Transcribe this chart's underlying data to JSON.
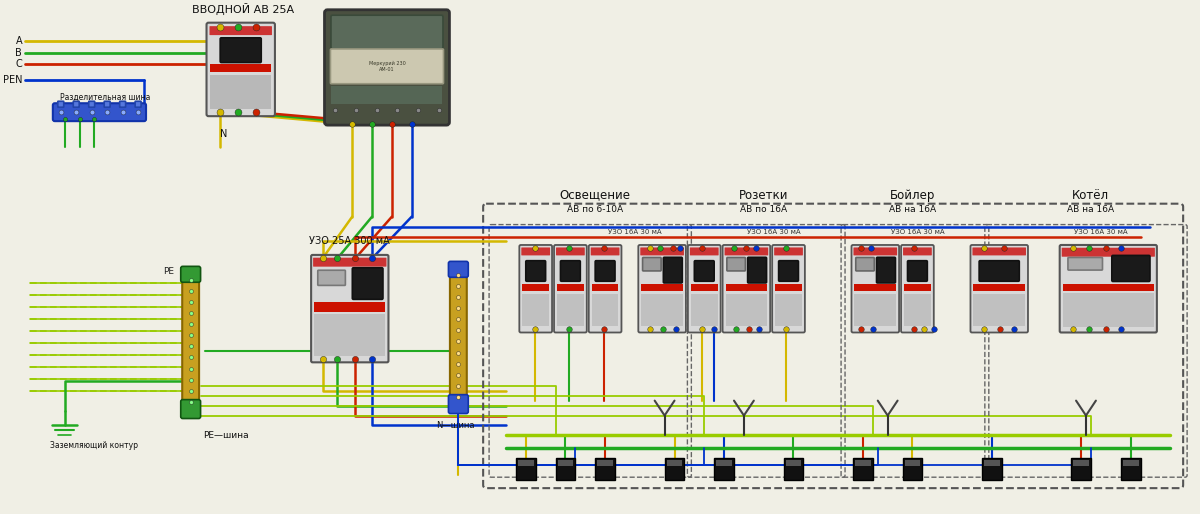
{
  "bg": "#f0efe5",
  "labels": {
    "input_breaker": "ВВОДНОЙ АВ 25А",
    "pen": "PEN",
    "split_bus": "Разделительная шина",
    "n_label": "N",
    "uzo_main": "УЗО 25А 300 мА",
    "re_label": "PE",
    "ground_label": "Заземляющий контур",
    "pe_bus_label": "РЕ—шина",
    "n_bus_label": "N—шина",
    "lighting": "Освещение",
    "lighting_sub": "АВ по 6-10А",
    "sockets": "Розетки",
    "sockets_sub": "АВ по 16А",
    "boiler": "Бойлер",
    "boiler_sub": "АВ на 16А",
    "kotel": "Котёл",
    "kotel_sub": "АВ на 16А",
    "uzo_16": "УЗО 16А 30 мА",
    "line_a": "А",
    "line_b": "В",
    "line_c": "С"
  },
  "colors": {
    "bg": "#f0efe5",
    "yellow": "#d4b800",
    "red": "#cc2200",
    "blue": "#0033cc",
    "green": "#22aa22",
    "gy": "#99cc00",
    "text": "#111111",
    "breaker_body": "#d8d8d8",
    "breaker_dark": "#888888",
    "red_stripe": "#cc1100",
    "handle_dark": "#222222",
    "bus_blue_fc": "#2244bb",
    "bus_gold_fc": "#c8a020",
    "bus_green_fc": "#339933",
    "meter_body": "#4a5040",
    "meter_screen": "#6a7a6a",
    "wire_dark": "#333333",
    "panel_bg": "#f5f5f0"
  }
}
